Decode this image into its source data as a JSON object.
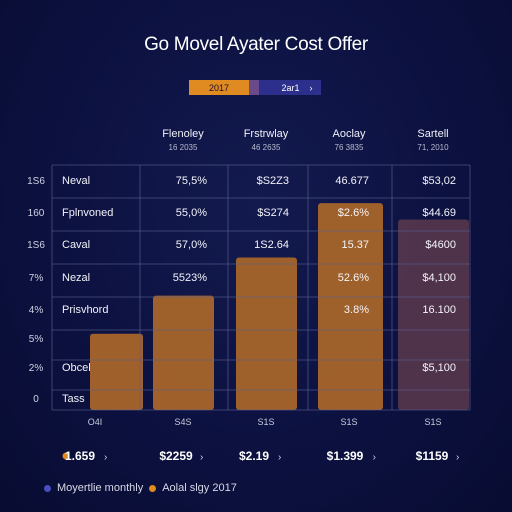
{
  "title": "Go Movel Ayater Cost Offer",
  "toggle": {
    "left_label": "2017",
    "right_label": "2ar1",
    "chevron": "›"
  },
  "colors": {
    "background": "#0c1140",
    "bar": "#a8652a",
    "bar_faded": "#5c3a4e",
    "grid": "#5a6090",
    "accent_orange": "#e08a22",
    "accent_blue": "#4a4fc0"
  },
  "chart_data": {
    "type": "bar",
    "title": "Go Movel Ayater Cost Offer",
    "categories": [
      "O4I",
      "S4S",
      "S1S",
      "S1S",
      "S1S"
    ],
    "series": [
      {
        "values": [
          1.4,
          2.1,
          2.8,
          3.8,
          3.5
        ]
      }
    ],
    "y_ticks": [
      "1S6",
      "160",
      "1S6",
      "7%",
      "4%",
      "5%",
      "2%",
      "0"
    ],
    "column_headers": [
      {
        "name": "Flenoley",
        "sub": "16 2035"
      },
      {
        "name": "Frstrwlay",
        "sub": "46 2635"
      },
      {
        "name": "Aoclay",
        "sub": "76 3835"
      },
      {
        "name": "Sartell",
        "sub": "71, 2010"
      }
    ],
    "rows": [
      {
        "label": "Neval",
        "cells": [
          "75,5%",
          "$S2Z3",
          "46.677",
          "$53,02"
        ]
      },
      {
        "label": "Fplnvoned",
        "cells": [
          "55,0%",
          "$S274",
          "$2.6%",
          "$44.69"
        ]
      },
      {
        "label": "Caval",
        "cells": [
          "57,0%",
          "1S2.64",
          "15.37",
          "$4600"
        ]
      },
      {
        "label": "Nezal",
        "cells": [
          "5523%",
          "",
          "52.6%",
          "$4,100"
        ]
      },
      {
        "label": "Prisvhord",
        "cells": [
          "",
          "",
          "3.8%",
          "16.100"
        ]
      },
      {
        "label": "",
        "cells": [
          "",
          "",
          "",
          ""
        ]
      },
      {
        "label": "Obcel",
        "cells": [
          "",
          "",
          "",
          "$5,100"
        ]
      },
      {
        "label": "Tass",
        "cells": [
          "",
          "",
          "",
          ""
        ]
      }
    ],
    "totals": [
      "1.659",
      "$2259",
      "$2.19",
      "$1.399",
      "$1159"
    ],
    "legend": [
      {
        "name": "Moyertlie monthly",
        "color": "#4a4fc0"
      },
      {
        "name": "Aolal slgy 2017",
        "color": "#e08a22"
      }
    ],
    "ylim": [
      0,
      4.5
    ],
    "grid": true,
    "legend_position": "bottom-left"
  }
}
